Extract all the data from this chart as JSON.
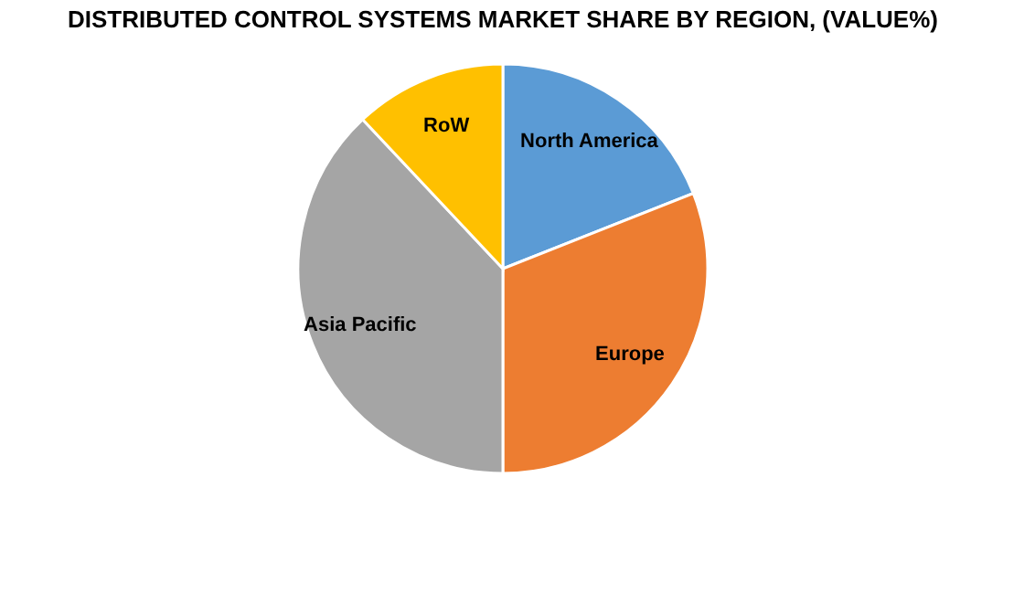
{
  "chart_data": {
    "type": "pie",
    "title": "DISTRIBUTED CONTROL SYSTEMS MARKET SHARE BY REGION, (VALUE%)",
    "categories": [
      "North America",
      "Europe",
      "Asia Pacific",
      "RoW"
    ],
    "values": [
      19,
      31,
      38,
      12
    ],
    "colors": [
      "#5b9bd5",
      "#ed7d31",
      "#a5a5a5",
      "#ffc000"
    ],
    "legend": false
  }
}
